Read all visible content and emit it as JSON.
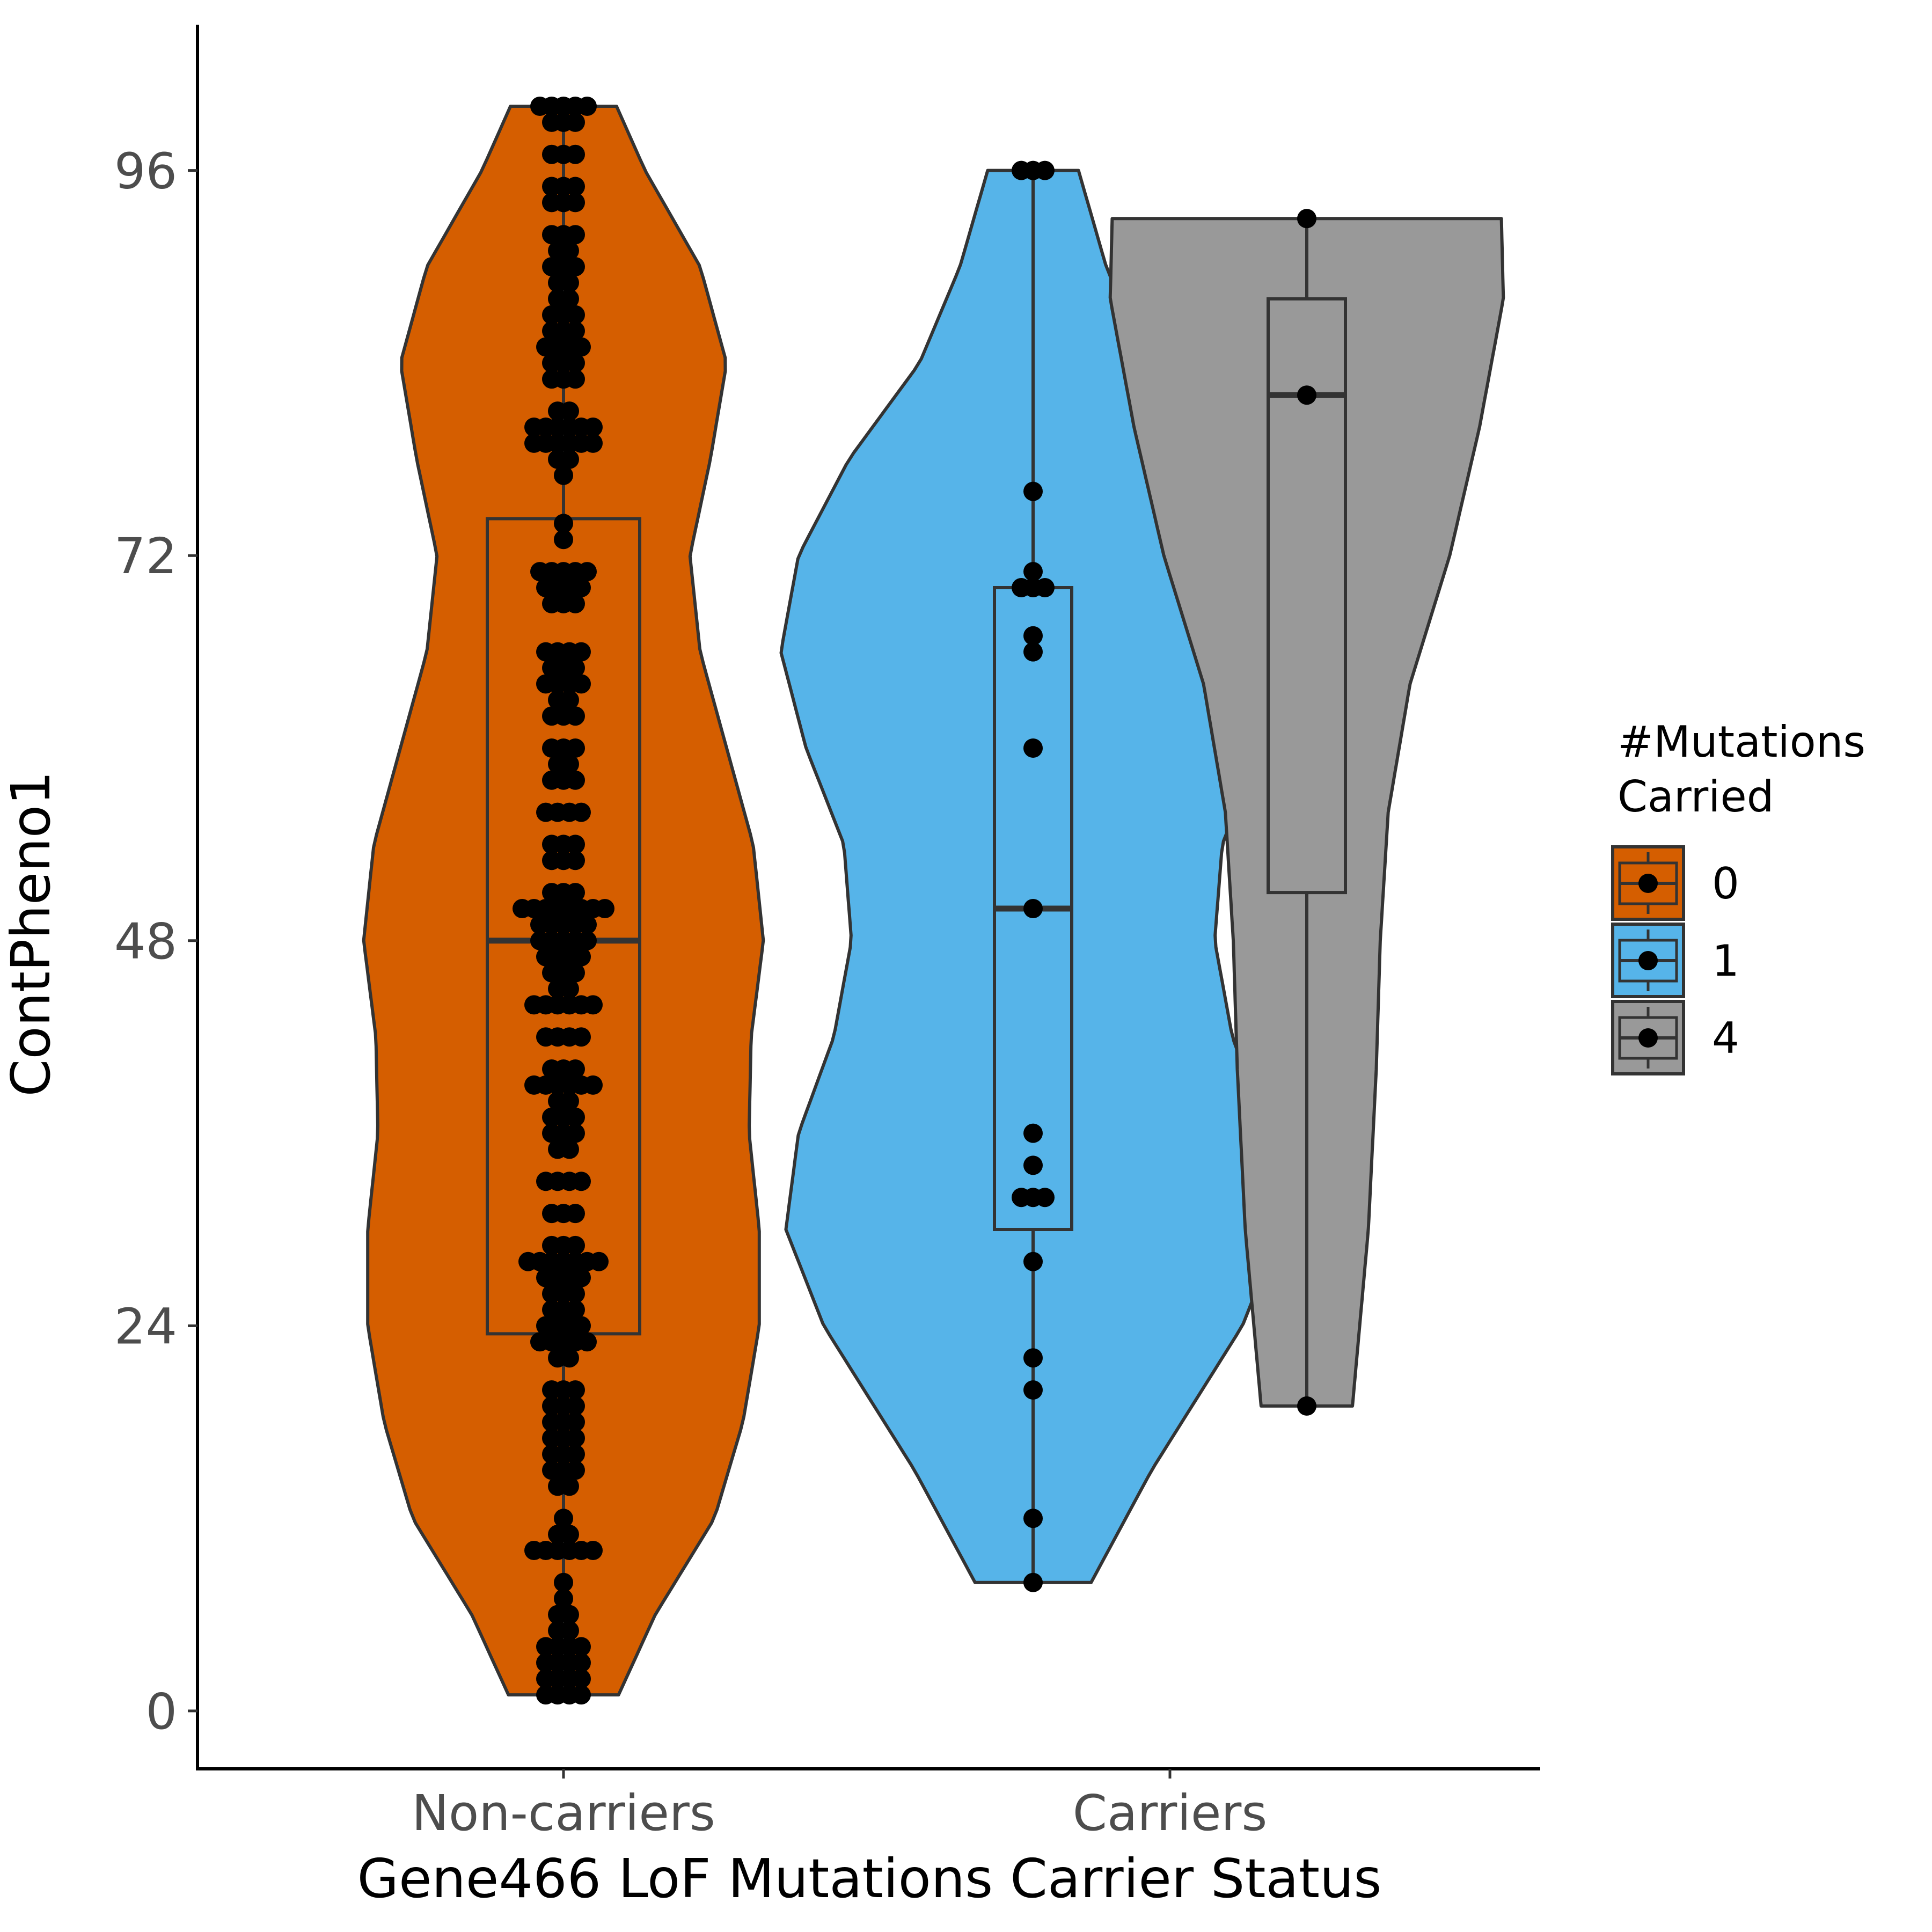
{
  "chart_data": {
    "type": "violin",
    "xlabel": "Gene466 LoF Mutations Carrier Status",
    "ylabel": "ContPheno1",
    "categories": [
      "Non-carriers",
      "Carriers"
    ],
    "ylim": [
      -4,
      105
    ],
    "yticks": [
      0,
      24,
      48,
      72,
      96
    ],
    "grid": false,
    "legend": {
      "title_lines": [
        "#Mutations",
        "Carried"
      ],
      "position": "right",
      "items": [
        {
          "label": "0",
          "color": "#D55E00"
        },
        {
          "label": "1",
          "color": "#56B4E9"
        },
        {
          "label": "4",
          "color": "#999999"
        }
      ]
    },
    "groups": [
      {
        "name": "0",
        "category": "Non-carriers",
        "color": "#D55E00",
        "ymin": 1,
        "ymax": 100,
        "box": {
          "lower_whisker": 1,
          "q1": 23.5,
          "median": 48,
          "q3": 74.3,
          "upper_whisker": 100
        },
        "density": [
          [
            1,
            0.27
          ],
          [
            6,
            0.45
          ],
          [
            12,
            0.74
          ],
          [
            18,
            0.88
          ],
          [
            24,
            0.96
          ],
          [
            30,
            0.96
          ],
          [
            36,
            0.91
          ],
          [
            42,
            0.92
          ],
          [
            48,
            0.98
          ],
          [
            54,
            0.93
          ],
          [
            60,
            0.8
          ],
          [
            66,
            0.67
          ],
          [
            72,
            0.62
          ],
          [
            78,
            0.72
          ],
          [
            84,
            0.8
          ],
          [
            90,
            0.67
          ],
          [
            96,
            0.4
          ],
          [
            100,
            0.26
          ]
        ],
        "points": [
          {
            "y": 1,
            "n": 4
          },
          {
            "y": 2,
            "n": 4
          },
          {
            "y": 3,
            "n": 4
          },
          {
            "y": 4,
            "n": 4
          },
          {
            "y": 5,
            "n": 2
          },
          {
            "y": 6,
            "n": 2
          },
          {
            "y": 7,
            "n": 1
          },
          {
            "y": 8,
            "n": 1
          },
          {
            "y": 10,
            "n": 6
          },
          {
            "y": 11,
            "n": 2
          },
          {
            "y": 12,
            "n": 1
          },
          {
            "y": 14,
            "n": 2
          },
          {
            "y": 15,
            "n": 3
          },
          {
            "y": 16,
            "n": 3
          },
          {
            "y": 17,
            "n": 3
          },
          {
            "y": 18,
            "n": 3
          },
          {
            "y": 19,
            "n": 3
          },
          {
            "y": 20,
            "n": 3
          },
          {
            "y": 22,
            "n": 2
          },
          {
            "y": 23,
            "n": 5
          },
          {
            "y": 24,
            "n": 4
          },
          {
            "y": 25,
            "n": 3
          },
          {
            "y": 26,
            "n": 3
          },
          {
            "y": 27,
            "n": 4
          },
          {
            "y": 28,
            "n": 7
          },
          {
            "y": 29,
            "n": 3
          },
          {
            "y": 31,
            "n": 3
          },
          {
            "y": 33,
            "n": 4
          },
          {
            "y": 35,
            "n": 2
          },
          {
            "y": 36,
            "n": 3
          },
          {
            "y": 37,
            "n": 3
          },
          {
            "y": 38,
            "n": 2
          },
          {
            "y": 39,
            "n": 6
          },
          {
            "y": 40,
            "n": 3
          },
          {
            "y": 42,
            "n": 4
          },
          {
            "y": 44,
            "n": 6
          },
          {
            "y": 45,
            "n": 2
          },
          {
            "y": 46,
            "n": 3
          },
          {
            "y": 47,
            "n": 4
          },
          {
            "y": 48,
            "n": 5
          },
          {
            "y": 49,
            "n": 5
          },
          {
            "y": 50,
            "n": 8
          },
          {
            "y": 51,
            "n": 3
          },
          {
            "y": 53,
            "n": 3
          },
          {
            "y": 54,
            "n": 3
          },
          {
            "y": 56,
            "n": 4
          },
          {
            "y": 58,
            "n": 3
          },
          {
            "y": 59,
            "n": 2
          },
          {
            "y": 60,
            "n": 3
          },
          {
            "y": 62,
            "n": 3
          },
          {
            "y": 63,
            "n": 2
          },
          {
            "y": 64,
            "n": 4
          },
          {
            "y": 65,
            "n": 3
          },
          {
            "y": 66,
            "n": 4
          },
          {
            "y": 69,
            "n": 3
          },
          {
            "y": 70,
            "n": 4
          },
          {
            "y": 71,
            "n": 5
          },
          {
            "y": 73,
            "n": 1
          },
          {
            "y": 74,
            "n": 1
          },
          {
            "y": 77,
            "n": 1
          },
          {
            "y": 78,
            "n": 2
          },
          {
            "y": 79,
            "n": 6
          },
          {
            "y": 80,
            "n": 6
          },
          {
            "y": 81,
            "n": 2
          },
          {
            "y": 83,
            "n": 3
          },
          {
            "y": 84,
            "n": 3
          },
          {
            "y": 85,
            "n": 4
          },
          {
            "y": 86,
            "n": 3
          },
          {
            "y": 87,
            "n": 3
          },
          {
            "y": 88,
            "n": 2
          },
          {
            "y": 89,
            "n": 2
          },
          {
            "y": 90,
            "n": 3
          },
          {
            "y": 91,
            "n": 2
          },
          {
            "y": 92,
            "n": 3
          },
          {
            "y": 94,
            "n": 3
          },
          {
            "y": 95,
            "n": 3
          },
          {
            "y": 97,
            "n": 3
          },
          {
            "y": 99,
            "n": 3
          },
          {
            "y": 100,
            "n": 5
          }
        ]
      },
      {
        "name": "1",
        "category": "Carriers",
        "color": "#56B4E9",
        "ymin": 8,
        "ymax": 96,
        "box": {
          "lower_whisker": 8,
          "q1": 30,
          "median": 50,
          "q3": 70,
          "upper_whisker": 96
        },
        "density": [
          [
            8,
            0.23
          ],
          [
            15,
            0.47
          ],
          [
            24,
            0.83
          ],
          [
            30,
            0.98
          ],
          [
            36,
            0.93
          ],
          [
            42,
            0.79
          ],
          [
            48,
            0.72
          ],
          [
            54,
            0.75
          ],
          [
            60,
            0.9
          ],
          [
            66,
            1.0
          ],
          [
            72,
            0.93
          ],
          [
            78,
            0.73
          ],
          [
            84,
            0.45
          ],
          [
            90,
            0.29
          ],
          [
            96,
            0.18
          ]
        ],
        "points": [
          {
            "y": 8,
            "n": 1
          },
          {
            "y": 12,
            "n": 1
          },
          {
            "y": 20,
            "n": 1
          },
          {
            "y": 22,
            "n": 1
          },
          {
            "y": 28,
            "n": 1
          },
          {
            "y": 32,
            "n": 3
          },
          {
            "y": 34,
            "n": 1
          },
          {
            "y": 36,
            "n": 1
          },
          {
            "y": 50,
            "n": 1
          },
          {
            "y": 60,
            "n": 1
          },
          {
            "y": 66,
            "n": 1
          },
          {
            "y": 67,
            "n": 1
          },
          {
            "y": 70,
            "n": 3
          },
          {
            "y": 71,
            "n": 1
          },
          {
            "y": 76,
            "n": 1
          },
          {
            "y": 96,
            "n": 3
          }
        ]
      },
      {
        "name": "4",
        "category": "Carriers",
        "color": "#999999",
        "ymin": 19,
        "ymax": 93,
        "box": {
          "lower_whisker": 19,
          "q1": 51,
          "median": 82,
          "q3": 88,
          "upper_whisker": 93
        },
        "density": [
          [
            19,
            0.23
          ],
          [
            30,
            0.31
          ],
          [
            40,
            0.35
          ],
          [
            48,
            0.37
          ],
          [
            56,
            0.41
          ],
          [
            64,
            0.52
          ],
          [
            72,
            0.72
          ],
          [
            80,
            0.87
          ],
          [
            88,
            0.99
          ],
          [
            93,
            0.98
          ]
        ],
        "points": [
          {
            "y": 19,
            "n": 1
          },
          {
            "y": 82,
            "n": 1
          },
          {
            "y": 93,
            "n": 1
          }
        ]
      }
    ]
  }
}
